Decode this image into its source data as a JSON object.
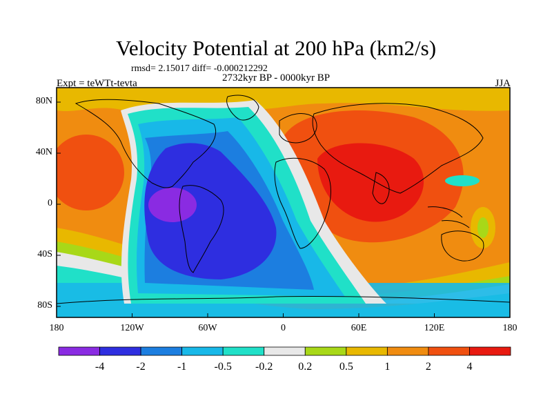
{
  "header": {
    "title": "Velocity Potential at 200 hPa (km2/s)",
    "stats": "rmsd= 2.15017 diff= -0.000212292",
    "period": "2732kyr BP - 0000kyr BP",
    "experiment": "Expt = teWTt-tevta",
    "season": "JJA"
  },
  "axes": {
    "lat_ticks": [
      "80N",
      "40N",
      "0",
      "40S",
      "80S"
    ],
    "lon_ticks": [
      "180",
      "120W",
      "60W",
      "0",
      "60E",
      "120E",
      "180"
    ]
  },
  "colorbar": {
    "colors": [
      "#8a2be2",
      "#2e2ee0",
      "#1c7ee0",
      "#18b8e8",
      "#20e0c8",
      "#e8e8e8",
      "#a8d818",
      "#e8b800",
      "#f08c10",
      "#f05010",
      "#e81a10"
    ],
    "labels": [
      "-4",
      "-2",
      "-1",
      "-0.5",
      "-0.2",
      "0.2",
      "0.5",
      "1",
      "2",
      "4"
    ]
  }
}
